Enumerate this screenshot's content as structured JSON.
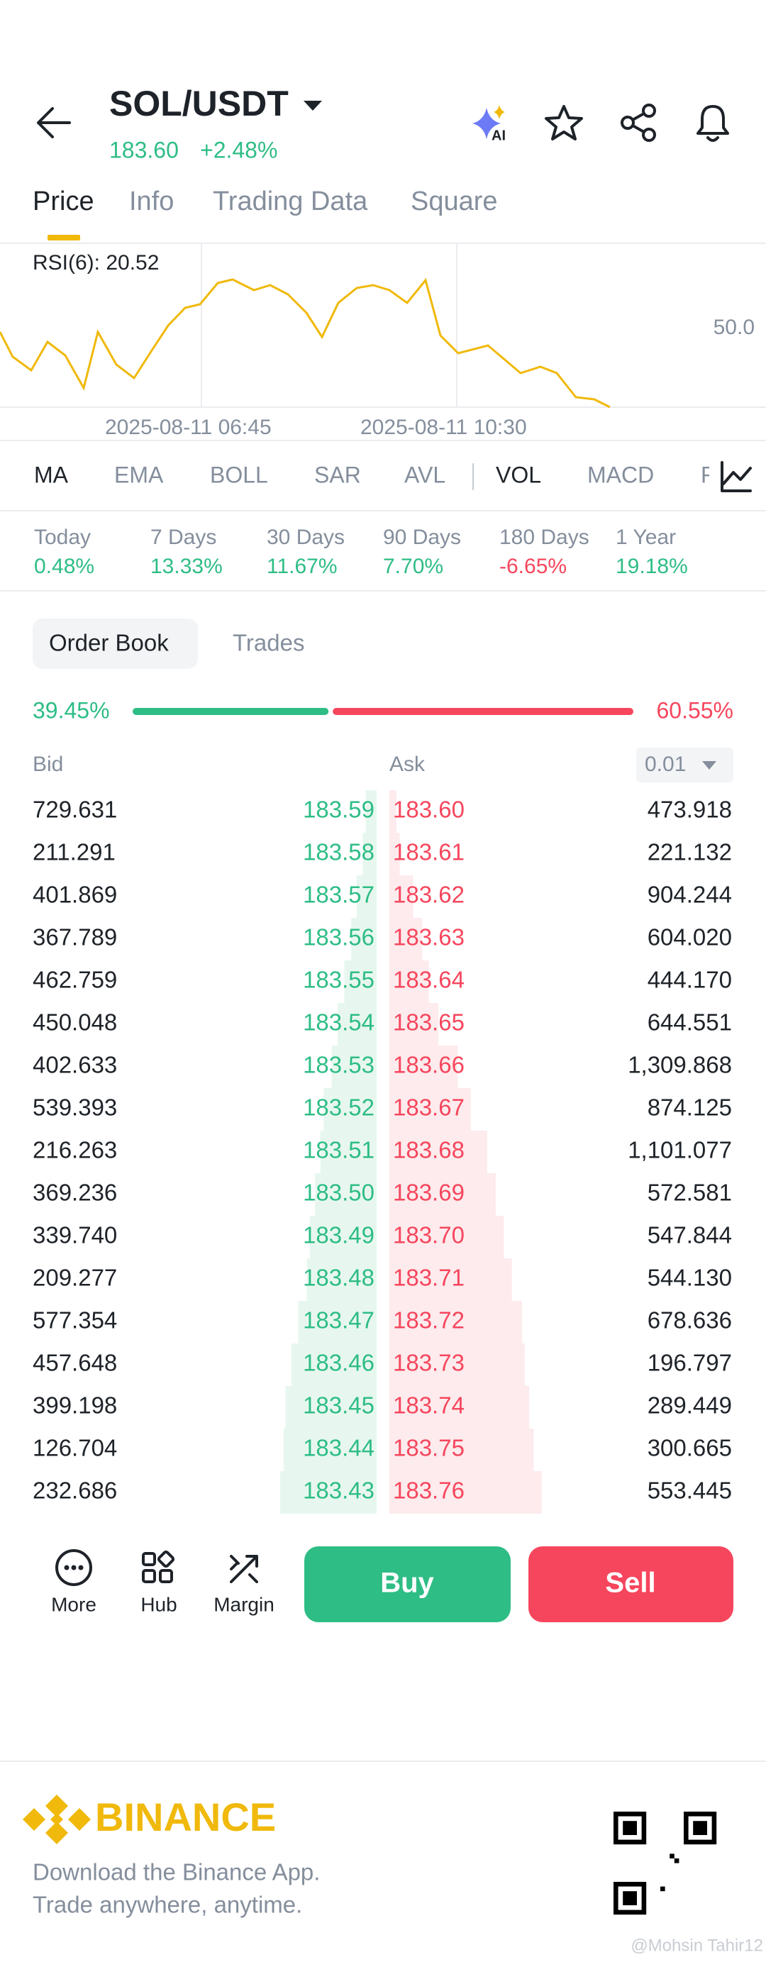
{
  "header": {
    "title": "SOL/USDT",
    "price": "183.60",
    "change": "+2.48%",
    "ai": "AI"
  },
  "tabs": [
    "Price",
    "Info",
    "Trading Data",
    "Square"
  ],
  "chart": {
    "rsi_label": "RSI(6): 20.52",
    "level_label": "50.0",
    "dates": [
      "2025-08-11 06:45",
      "2025-08-11 10:30"
    ]
  },
  "indicators": [
    "MA",
    "EMA",
    "BOLL",
    "SAR",
    "AVL",
    "VOL",
    "MACD",
    "R"
  ],
  "stats": [
    {
      "label": "Today",
      "value": "0.48%"
    },
    {
      "label": "7 Days",
      "value": "13.33%"
    },
    {
      "label": "30 Days",
      "value": "11.67%"
    },
    {
      "label": "90 Days",
      "value": "7.70%"
    },
    {
      "label": "180 Days",
      "value": "-6.65%"
    },
    {
      "label": "1 Year",
      "value": "19.18%"
    }
  ],
  "order_book": {
    "tabs": [
      "Order Book",
      "Trades"
    ],
    "bid_pct": "39.45%",
    "ask_pct": "60.55%",
    "headers": {
      "bid": "Bid",
      "ask": "Ask",
      "precision": "0.01"
    },
    "rows": [
      [
        "729.631",
        "183.59",
        "183.60",
        "473.918"
      ],
      [
        "211.291",
        "183.58",
        "183.61",
        "221.132"
      ],
      [
        "401.869",
        "183.57",
        "183.62",
        "904.244"
      ],
      [
        "367.789",
        "183.56",
        "183.63",
        "604.020"
      ],
      [
        "462.759",
        "183.55",
        "183.64",
        "444.170"
      ],
      [
        "450.048",
        "183.54",
        "183.65",
        "644.551"
      ],
      [
        "402.633",
        "183.53",
        "183.66",
        "1,309.868"
      ],
      [
        "539.393",
        "183.52",
        "183.67",
        "874.125"
      ],
      [
        "216.263",
        "183.51",
        "183.68",
        "1,101.077"
      ],
      [
        "369.236",
        "183.50",
        "183.69",
        "572.581"
      ],
      [
        "339.740",
        "183.49",
        "183.70",
        "547.844"
      ],
      [
        "209.277",
        "183.48",
        "183.71",
        "544.130"
      ],
      [
        "577.354",
        "183.47",
        "183.72",
        "678.636"
      ],
      [
        "457.648",
        "183.46",
        "183.73",
        "196.797"
      ],
      [
        "399.198",
        "183.45",
        "183.74",
        "289.449"
      ],
      [
        "126.704",
        "183.44",
        "183.75",
        "300.665"
      ],
      [
        "232.686",
        "183.43",
        "183.76",
        "553.445"
      ]
    ]
  },
  "toolbar": [
    "More",
    "Hub",
    "Margin"
  ],
  "buttons": {
    "buy": "Buy",
    "sell": "Sell"
  },
  "footer": {
    "brand": "BINANCE",
    "line1": "Download the Binance App.",
    "line2": "Trade anywhere, anytime.",
    "watermark": "@Mohsin Tahir12"
  }
}
